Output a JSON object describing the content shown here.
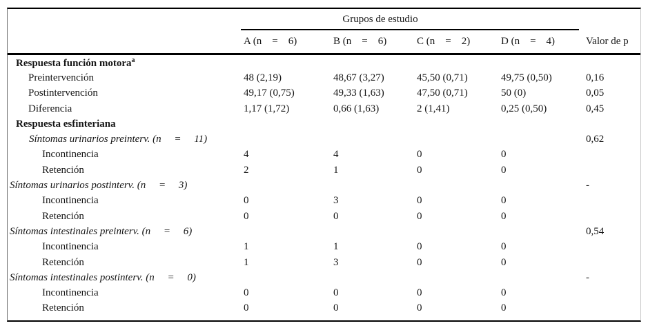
{
  "table": {
    "span_header": "Grupos de estudio",
    "p_header": "Valor de p",
    "col_headers": {
      "a": "A (n    =    6)",
      "b": "B (n    =    6)",
      "c": "C (n    =    2)",
      "d": "D (n    =    4)"
    },
    "rows": [
      {
        "label": "Respuesta función motora",
        "sup": "a"
      },
      {
        "label": "Preintervención",
        "a": "48 (2,19)",
        "b": "48,67 (3,27)",
        "c": "45,50 (0,71)",
        "d": "49,75 (0,50)",
        "p": "0,16"
      },
      {
        "label": "Postintervención",
        "a": "49,17 (0,75)",
        "b": "49,33 (1,63)",
        "c": "47,50 (0,71)",
        "d": "50 (0)",
        "p": "0,05"
      },
      {
        "label": "Diferencia",
        "a": "1,17 (1,72)",
        "b": "0,66 (1,63)",
        "c": "2 (1,41)",
        "d": "0,25 (0,50)",
        "p": "0,45"
      },
      {
        "label": "Respuesta esfinteriana"
      },
      {
        "label": "Síntomas urinarios preinterv. (n     =     11)",
        "p": "0,62"
      },
      {
        "label": "Incontinencia",
        "a": "4",
        "b": "4",
        "c": "0",
        "d": "0"
      },
      {
        "label": "Retención",
        "a": "2",
        "b": "1",
        "c": "0",
        "d": "0"
      },
      {
        "label": "Síntomas urinarios postinterv. (n     =     3)",
        "p": "-"
      },
      {
        "label": "Incontinencia",
        "a": "0",
        "b": "3",
        "c": "0",
        "d": "0"
      },
      {
        "label": "Retención",
        "a": "0",
        "b": "0",
        "c": "0",
        "d": "0"
      },
      {
        "label": "Síntomas intestinales preinterv. (n     =     6)",
        "p": "0,54"
      },
      {
        "label": "Incontinencia",
        "a": "1",
        "b": "1",
        "c": "0",
        "d": "0"
      },
      {
        "label": "Retención",
        "a": "1",
        "b": "3",
        "c": "0",
        "d": "0"
      },
      {
        "label": "Síntomas intestinales postinterv. (n     =     0)",
        "p": "-"
      },
      {
        "label": "Incontinencia",
        "a": "0",
        "b": "0",
        "c": "0",
        "d": "0"
      },
      {
        "label": "Retención",
        "a": "0",
        "b": "0",
        "c": "0",
        "d": "0"
      }
    ]
  }
}
